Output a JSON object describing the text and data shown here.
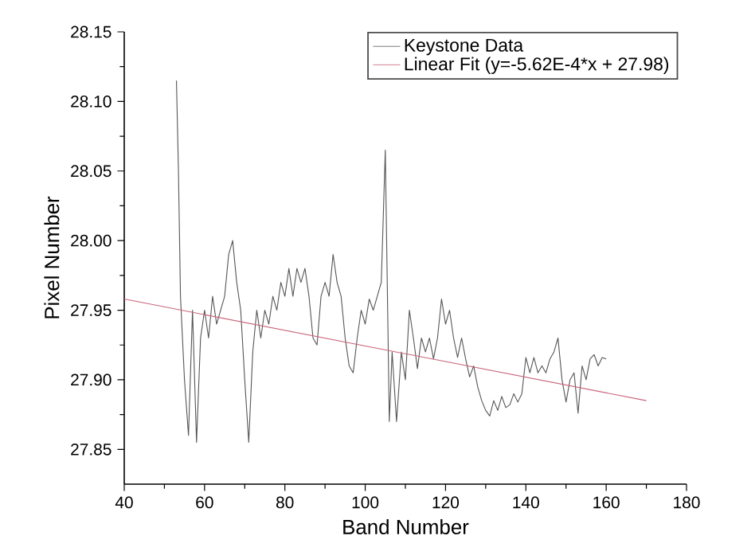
{
  "chart_data": {
    "type": "line",
    "xlabel": "Band Number",
    "ylabel": "Pixel Number",
    "xlim": [
      40,
      180
    ],
    "xticks": [
      40,
      60,
      80,
      100,
      120,
      140,
      160,
      180
    ],
    "ylim": [
      27.825,
      28.15
    ],
    "yticks": [
      27.85,
      {
        "value": 27.9,
        "label": "27.90"
      },
      27.95,
      {
        "value": 28.0,
        "label": "28.00"
      },
      28.05,
      {
        "value": 28.1,
        "label": "28.10"
      },
      28.15
    ],
    "legend": "top right",
    "grid": false,
    "marker": "none",
    "line_style": "solid",
    "series": [
      {
        "name": "Keystone Data",
        "color": "#555555",
        "x": [
          53,
          53.5,
          54,
          55,
          56,
          57,
          58,
          59,
          60,
          61,
          62,
          63,
          64,
          65,
          66,
          67,
          68,
          69,
          70,
          71,
          72,
          73,
          74,
          75,
          76,
          77,
          78,
          79,
          80,
          81,
          82,
          83,
          84,
          85,
          86,
          87,
          88,
          89,
          90,
          91,
          92,
          93,
          94,
          95,
          96,
          97,
          98,
          99,
          100,
          101,
          102,
          103,
          104,
          105,
          106,
          106.7,
          107.8,
          109,
          110,
          111,
          112,
          113,
          114,
          115,
          116,
          117,
          118,
          119,
          120,
          121,
          122,
          123,
          124,
          125,
          126,
          127,
          128,
          129,
          130,
          131,
          132,
          133,
          134,
          135,
          136,
          137,
          138,
          139,
          140,
          141,
          142,
          143,
          144,
          145,
          146,
          147,
          148,
          149,
          150,
          151,
          152,
          153,
          154,
          155,
          156,
          157,
          158,
          159,
          160
        ],
        "values": [
          28.115,
          28.05,
          27.96,
          27.9,
          27.86,
          27.95,
          27.855,
          27.93,
          27.95,
          27.93,
          27.96,
          27.94,
          27.95,
          27.96,
          27.99,
          28.0,
          27.97,
          27.95,
          27.9,
          27.855,
          27.92,
          27.95,
          27.93,
          27.95,
          27.94,
          27.96,
          27.95,
          27.97,
          27.96,
          27.98,
          27.96,
          27.98,
          27.97,
          27.98,
          27.96,
          27.93,
          27.925,
          27.96,
          27.97,
          27.96,
          27.99,
          27.97,
          27.96,
          27.93,
          27.91,
          27.905,
          27.93,
          27.95,
          27.94,
          27.958,
          27.95,
          27.96,
          27.97,
          28.065,
          27.87,
          27.92,
          27.87,
          27.92,
          27.9,
          27.95,
          27.93,
          27.908,
          27.93,
          27.92,
          27.93,
          27.915,
          27.93,
          27.958,
          27.94,
          27.95,
          27.93,
          27.916,
          27.93,
          27.915,
          27.902,
          27.91,
          27.895,
          27.885,
          27.878,
          27.874,
          27.885,
          27.878,
          27.888,
          27.88,
          27.882,
          27.89,
          27.884,
          27.89,
          27.916,
          27.905,
          27.916,
          27.905,
          27.91,
          27.905,
          27.915,
          27.92,
          27.93,
          27.9,
          27.884,
          27.9,
          27.905,
          27.876,
          27.91,
          27.9,
          27.915,
          27.918,
          27.91,
          27.916,
          27.915
        ]
      },
      {
        "name": "Linear Fit (y=-5.62E-4*x + 27.98)",
        "color": "#c8647a",
        "x": [
          40,
          170
        ],
        "values": [
          27.958,
          27.885
        ]
      }
    ]
  }
}
